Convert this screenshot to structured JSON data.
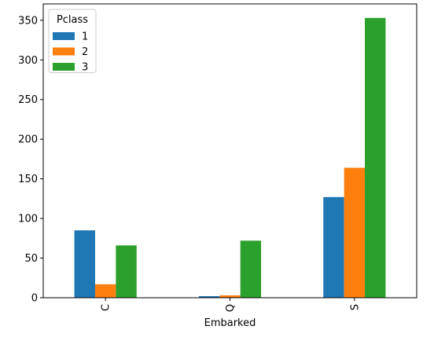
{
  "chart_data": {
    "type": "bar",
    "title": "",
    "xlabel": "Embarked",
    "ylabel": "",
    "categories": [
      "C",
      "Q",
      "S"
    ],
    "series": [
      {
        "name": "1",
        "color": "#1f77b4",
        "values": [
          85,
          2,
          127
        ]
      },
      {
        "name": "2",
        "color": "#ff7f0e",
        "values": [
          17,
          3,
          164
        ]
      },
      {
        "name": "3",
        "color": "#2ca02c",
        "values": [
          66,
          72,
          353
        ]
      }
    ],
    "ylim": [
      0,
      370.65
    ],
    "yticks": [
      0,
      50,
      100,
      150,
      200,
      250,
      300,
      350
    ],
    "legend": {
      "title": "Pclass",
      "placement": "top-left"
    },
    "grid": false
  }
}
